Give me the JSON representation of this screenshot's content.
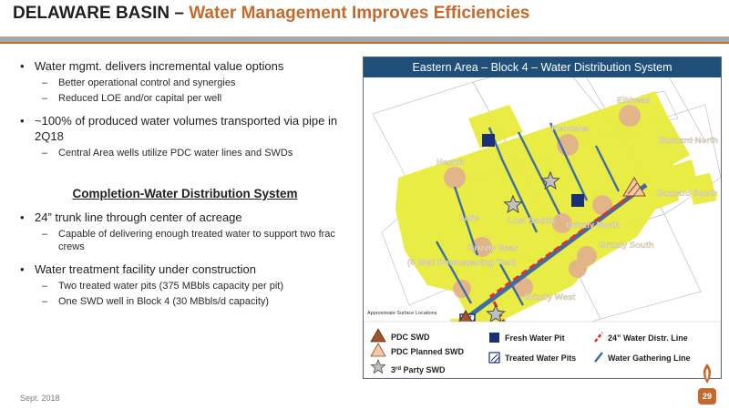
{
  "header": {
    "title_main": "DELAWARE BASIN",
    "title_sep": " – ",
    "title_accent": "Water Management Improves Efficiencies"
  },
  "left": {
    "bullets_top": [
      {
        "text": "Water mgmt. delivers incremental value options",
        "subs": [
          "Better operational control and synergies",
          "Reduced LOE and/or capital per well"
        ]
      },
      {
        "text": "~100% of produced water volumes transported via pipe in 2Q18",
        "subs": [
          "Central Area wells utilize PDC water lines and SWDs"
        ]
      }
    ],
    "subheading": "Completion-Water Distribution System",
    "bullets_bottom": [
      {
        "text": "24” trunk line through center of acreage",
        "subs": [
          "Capable of delivering enough treated water to support two frac crews"
        ]
      },
      {
        "text": "Water treatment facility under construction",
        "subs": [
          "Two treated water pits (375 MBbls capacity per pit)",
          "One SWD well in Block 4 (30 MBbls/d capacity)"
        ]
      }
    ]
  },
  "map": {
    "header": "Eastern Area – Block 4 – Water Distribution System",
    "labels": {
      "elkhead": "Elkhead",
      "kenosha": "Kenosha",
      "buzzard_north": "Buzzard North",
      "hermit": "Hermit",
      "buzzard_south": "Buzzard South",
      "lost_saddle": "Lost Saddle",
      "lake": "Lake",
      "grizzly_north": "Grizzly North",
      "grizzly_south": "Grizzly South",
      "grizzly_bear": "Grizzly Bear",
      "downspacing": "(6 Well Downspacing Test)",
      "grizzly_west": "Grizzly West",
      "approx": "Approximate Surface Locations"
    },
    "legend": {
      "pdc_swd": "PDC SWD",
      "pdc_planned_swd": "PDC Planned SWD",
      "third_party_prefix": "3",
      "third_party_sup": "rd",
      "third_party_suffix": " Party SWD",
      "fresh_water_pit": "Fresh Water Pit",
      "treated_water_pits": "Treated Water Pits",
      "distr_line": "24” Water Distr. Line",
      "gathering_line": "Water Gathering Line"
    },
    "colors": {
      "acreage": "#e8ec3a",
      "pipe": "#3d6ea3",
      "distr": "#e03030",
      "swd": "#a0522d",
      "fresh_pit": "#1a2f7a"
    }
  },
  "footer": {
    "date": "Sept. 2018",
    "page": "29"
  }
}
